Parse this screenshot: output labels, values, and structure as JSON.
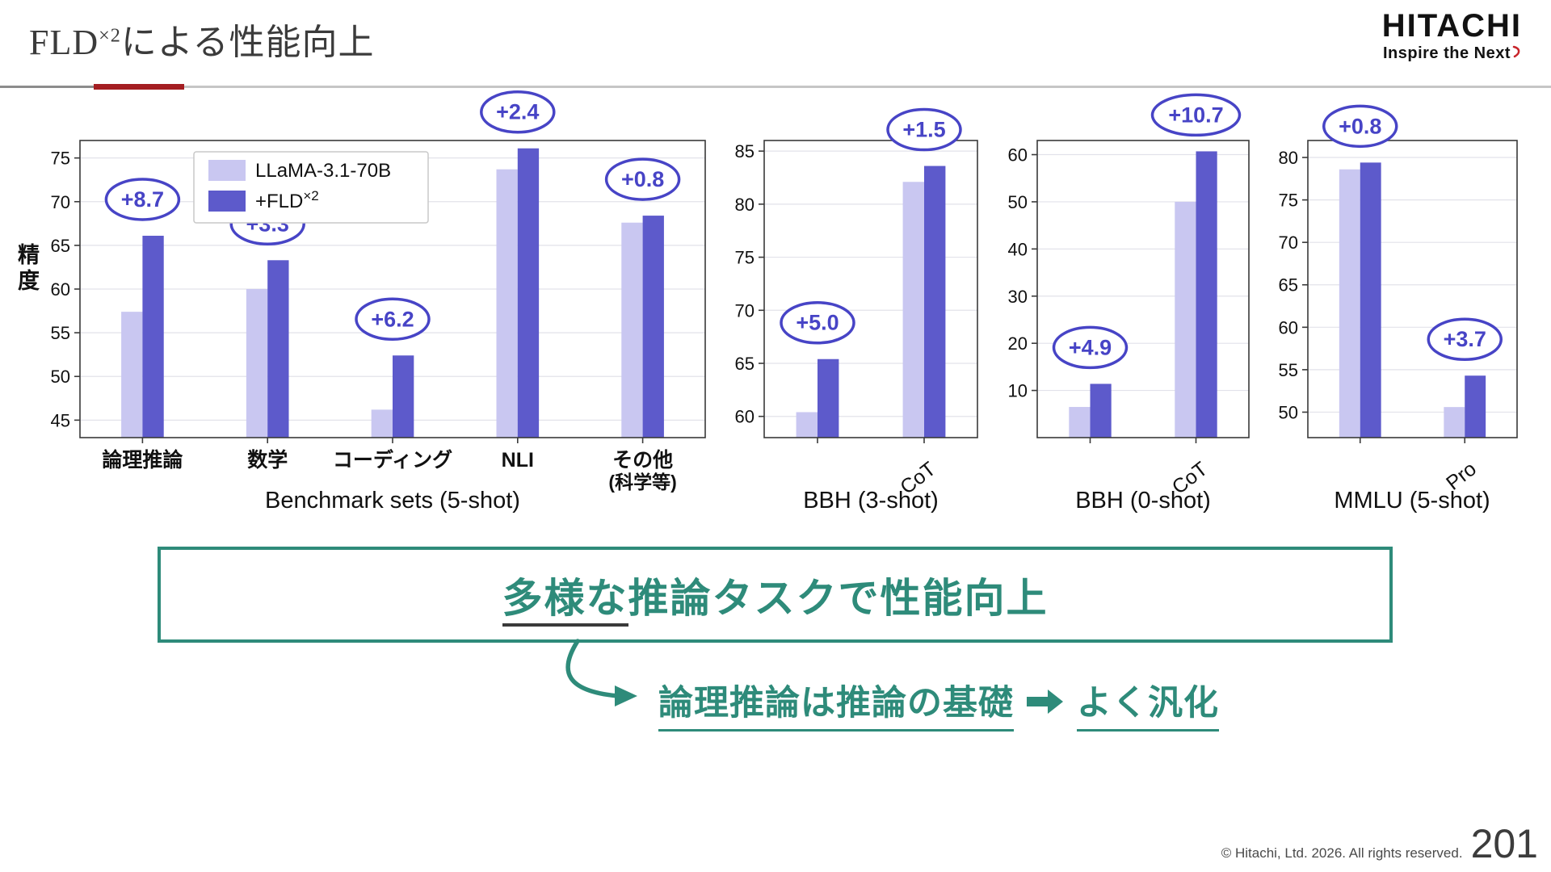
{
  "header": {
    "title_base": "FLD",
    "title_sup": "×2",
    "title_rest": "による性能向上",
    "logo_main": "HITACHI",
    "logo_sub": "Inspire the Next"
  },
  "legend": {
    "series1": "LLaMA-3.1-70B",
    "series2_base": "+FLD",
    "series2_sup": "×2"
  },
  "chart_data": [
    {
      "type": "bar",
      "caption": "Benchmark sets (5-shot)",
      "ylabel": "精度",
      "categories": [
        "論理推論",
        "数学",
        "コーディング",
        "NLI",
        "その他\n(科学等)"
      ],
      "series": [
        {
          "name": "LLaMA-3.1-70B",
          "values": [
            57.4,
            60.0,
            46.2,
            73.7,
            67.6
          ]
        },
        {
          "name": "+FLD×2",
          "values": [
            66.1,
            63.3,
            52.4,
            76.1,
            68.4
          ]
        }
      ],
      "gains": [
        "+8.7",
        "+3.3",
        "+6.2",
        "+2.4",
        "+0.8"
      ],
      "ylim": [
        43,
        77
      ],
      "yticks": [
        45,
        50,
        55,
        60,
        65,
        70,
        75
      ],
      "rotated_xticks": false,
      "grid": true,
      "legend_position": "upper-left"
    },
    {
      "type": "bar",
      "caption": "BBH (3-shot)",
      "categories": [
        "",
        "CoT"
      ],
      "series": [
        {
          "name": "LLaMA-3.1-70B",
          "values": [
            60.4,
            82.1
          ]
        },
        {
          "name": "+FLD×2",
          "values": [
            65.4,
            83.6
          ]
        }
      ],
      "gains": [
        "+5.0",
        "+1.5"
      ],
      "ylim": [
        58,
        86
      ],
      "yticks": [
        60,
        65,
        70,
        75,
        80,
        85
      ],
      "rotated_xticks": true,
      "grid": true
    },
    {
      "type": "bar",
      "caption": "BBH (0-shot)",
      "categories": [
        "",
        "CoT"
      ],
      "series": [
        {
          "name": "LLaMA-3.1-70B",
          "values": [
            6.5,
            50.0
          ]
        },
        {
          "name": "+FLD×2",
          "values": [
            11.4,
            60.7
          ]
        }
      ],
      "gains": [
        "+4.9",
        "+10.7"
      ],
      "ylim": [
        0,
        63
      ],
      "yticks": [
        10,
        20,
        30,
        40,
        50,
        60
      ],
      "rotated_xticks": true,
      "grid": true
    },
    {
      "type": "bar",
      "caption": "MMLU (5-shot)",
      "categories": [
        "",
        "Pro"
      ],
      "series": [
        {
          "name": "LLaMA-3.1-70B",
          "values": [
            78.6,
            50.6
          ]
        },
        {
          "name": "+FLD×2",
          "values": [
            79.4,
            54.3
          ]
        }
      ],
      "gains": [
        "+0.8",
        "+3.7"
      ],
      "ylim": [
        47,
        82
      ],
      "yticks": [
        50,
        55,
        60,
        65,
        70,
        75,
        80
      ],
      "rotated_xticks": true,
      "grid": true
    }
  ],
  "colors": {
    "series1": "#c9c7f1",
    "series2": "#5d5acb",
    "annotation": "#4744c6",
    "teal": "#2e8b7a",
    "accent_red": "#a41e22"
  },
  "callout": {
    "underlined": "多様な",
    "rest": "推論タスクで性能向上",
    "note_left": "論理推論は推論の基礎",
    "note_right": "よく汎化"
  },
  "icons": {
    "note_arrow": "right-arrow-icon",
    "flow_arrow": "curved-arrow-icon"
  },
  "footer": {
    "copyright": "© Hitachi, Ltd. 2026. All rights reserved.",
    "page": "201"
  }
}
